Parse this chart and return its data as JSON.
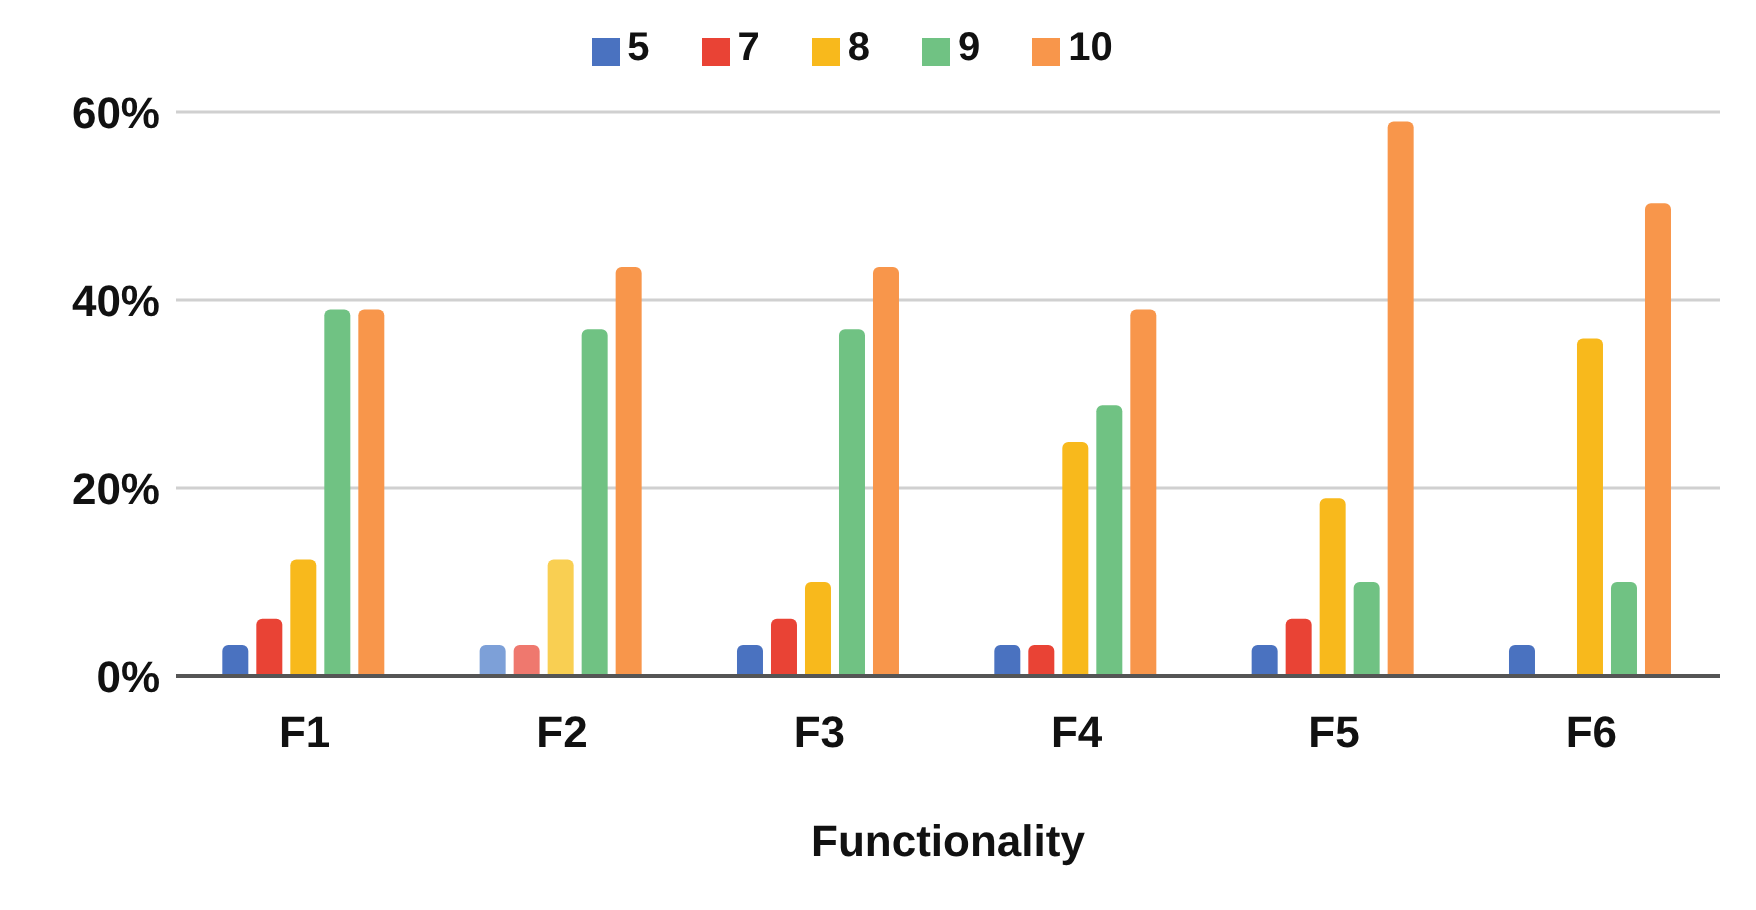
{
  "chart_data": {
    "type": "bar",
    "xlabel": "Functionality",
    "categories": [
      "F1",
      "F2",
      "F3",
      "F4",
      "F5",
      "F6"
    ],
    "series": [
      {
        "name": "5",
        "color": "#4a72c0",
        "colors": [
          "#4a72c0",
          "#7da0d8",
          "#4a72c0",
          "#4a72c0",
          "#4a72c0",
          "#4a72c0"
        ],
        "values": [
          3.3,
          3.3,
          3.3,
          3.3,
          3.3,
          3.3
        ]
      },
      {
        "name": "7",
        "color": "#e94335",
        "colors": [
          "#e94335",
          "#ef786e",
          "#e94335",
          "#e94335",
          "#e94335",
          "#e94335"
        ],
        "values": [
          6.1,
          3.3,
          6.1,
          3.3,
          6.1,
          null
        ]
      },
      {
        "name": "8",
        "color": "#f8b91c",
        "colors": [
          "#f8b91c",
          "#f9cf52",
          "#f8b91c",
          "#f8b91c",
          "#f8b91c",
          "#f8b91c"
        ],
        "values": [
          12.4,
          12.4,
          10.0,
          24.9,
          18.9,
          35.9
        ]
      },
      {
        "name": "9",
        "color": "#70c283",
        "values": [
          39.0,
          36.9,
          36.9,
          28.8,
          10.0,
          10.0
        ]
      },
      {
        "name": "10",
        "color": "#f8964b",
        "values": [
          39.0,
          43.5,
          43.5,
          39.0,
          59.0,
          50.3
        ]
      }
    ],
    "ylim": [
      0,
      60
    ],
    "yticks": [
      {
        "value": 0,
        "label": "0%"
      },
      {
        "value": 20,
        "label": "20%"
      },
      {
        "value": 40,
        "label": "40%"
      },
      {
        "value": 60,
        "label": "60%"
      }
    ],
    "grid": "y",
    "legend": "top"
  }
}
